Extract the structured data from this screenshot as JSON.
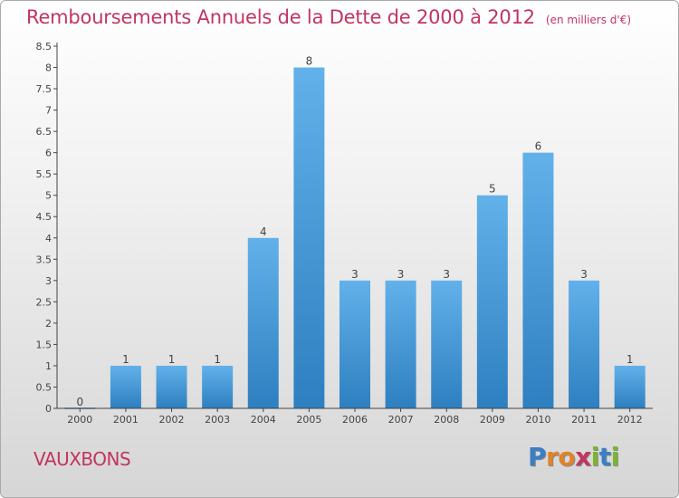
{
  "header": {
    "title": "Remboursements Annuels de la Dette de 2000 à 2012",
    "subtitle": "(en milliers d'€)"
  },
  "footer": {
    "commune": "VAUXBONS",
    "logo_text": "Proxiti",
    "logo_letter_colors": [
      "#3a7fc4",
      "#e0832b",
      "#e0832b",
      "#c2355f",
      "#7ab530",
      "#3a7fc4",
      "#7ab530"
    ]
  },
  "colors": {
    "bar_top": "#62b1ea",
    "bar_bottom": "#2e7fc0",
    "title": "#c2355f",
    "axis": "#444444"
  },
  "chart_data": {
    "type": "bar",
    "title": "Remboursements Annuels de la Dette de 2000 à 2012",
    "subtitle": "(en milliers d'€)",
    "categories": [
      "2000",
      "2001",
      "2002",
      "2003",
      "2004",
      "2005",
      "2006",
      "2007",
      "2008",
      "2009",
      "2010",
      "2011",
      "2012"
    ],
    "values": [
      0,
      1,
      1,
      1,
      4,
      8,
      3,
      3,
      3,
      5,
      6,
      3,
      1
    ],
    "data_labels": [
      "0",
      "1",
      "1",
      "1",
      "4",
      "8",
      "3",
      "3",
      "3",
      "5",
      "6",
      "3",
      "1"
    ],
    "ylim": [
      0,
      8.5
    ],
    "yticks": [
      "0",
      "0.5",
      "1",
      "1.5",
      "2",
      "2.5",
      "3",
      "3.5",
      "4",
      "4.5",
      "5",
      "5.5",
      "6",
      "6.5",
      "7",
      "7.5",
      "8",
      "8.5"
    ],
    "xlabel": "",
    "ylabel": "",
    "grid": false,
    "legend": "none"
  }
}
